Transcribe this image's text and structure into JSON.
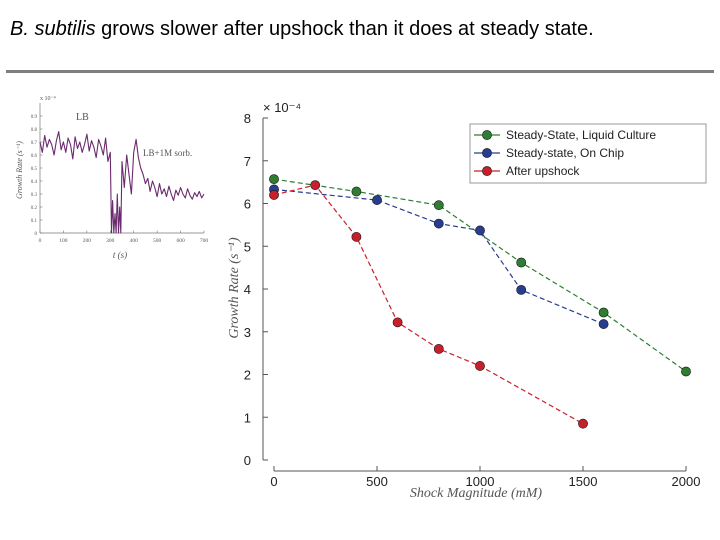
{
  "slide": {
    "title_italic": "B. subtilis",
    "title_rest": " grows slower after upshock than it does at steady state."
  },
  "colors": {
    "green": "#2e7d32",
    "blue": "#283d8f",
    "red": "#c8202a",
    "inset_line": "#6a2a6e",
    "rule": "#7f7f7f"
  },
  "chart_data": [
    {
      "type": "line",
      "title": "",
      "xlabel": "Shock Magnitude (mM)",
      "ylabel": "Growth Rate (s⁻¹)",
      "y_multiplier": "× 10⁻⁴",
      "xlim": [
        0,
        2000
      ],
      "ylim": [
        0,
        8
      ],
      "xticks": [
        0,
        500,
        1000,
        1500,
        2000
      ],
      "yticks": [
        0,
        1,
        2,
        3,
        4,
        5,
        6,
        7,
        8
      ],
      "grid": false,
      "legend_position": "top-right",
      "series": [
        {
          "name": "Steady-State, Liquid Culture",
          "color": "#2e7d32",
          "x": [
            0,
            400,
            800,
            1200,
            1600,
            2000
          ],
          "y": [
            6.57,
            6.28,
            5.96,
            4.62,
            3.45,
            2.07
          ]
        },
        {
          "name": "Steady-state, On Chip",
          "color": "#283d8f",
          "x": [
            0,
            500,
            800,
            1000,
            1200,
            1600
          ],
          "y": [
            6.33,
            6.08,
            5.53,
            5.37,
            3.98,
            3.18
          ]
        },
        {
          "name": "After upshock",
          "color": "#c8202a",
          "x": [
            0,
            200,
            400,
            600,
            800,
            1000,
            1500
          ],
          "y": [
            6.2,
            6.43,
            5.22,
            3.22,
            2.6,
            2.2,
            0.85
          ]
        }
      ]
    },
    {
      "type": "line",
      "title": "",
      "xlabel": "t (s)",
      "ylabel": "Growth Rate (s⁻¹)",
      "y_multiplier": "x 10⁻⁴",
      "xlim": [
        0,
        700
      ],
      "ylim": [
        0,
        1
      ],
      "xticks": [
        0,
        100,
        200,
        300,
        400,
        500,
        600,
        700
      ],
      "yticks": [
        "0",
        "0.1",
        "0.2",
        "0.3",
        "0.4",
        "0.5",
        "0.6",
        "0.7",
        "0.8",
        "0.9"
      ],
      "grid": false,
      "annotations": [
        "LB",
        "LB+1M sorb."
      ],
      "series": [
        {
          "color": "#6a2a6e",
          "x": [
            0,
            10,
            20,
            30,
            40,
            50,
            60,
            70,
            80,
            90,
            100,
            110,
            120,
            130,
            140,
            150,
            160,
            170,
            180,
            190,
            200,
            210,
            220,
            230,
            240,
            250,
            260,
            270,
            280,
            290,
            300,
            305,
            310,
            315,
            320,
            325,
            330,
            335,
            340,
            345,
            350,
            360,
            370,
            380,
            390,
            400,
            410,
            420,
            430,
            440,
            450,
            460,
            470,
            480,
            490,
            500,
            510,
            520,
            530,
            540,
            550,
            560,
            570,
            580,
            590,
            600,
            610,
            620,
            630,
            640,
            650,
            660,
            670,
            680,
            690,
            700
          ],
          "y": [
            0.7,
            0.62,
            0.75,
            0.66,
            0.72,
            0.68,
            0.6,
            0.71,
            0.78,
            0.64,
            0.7,
            0.62,
            0.73,
            0.68,
            0.57,
            0.74,
            0.65,
            0.7,
            0.62,
            0.68,
            0.76,
            0.63,
            0.71,
            0.66,
            0.58,
            0.72,
            0.67,
            0.6,
            0.73,
            0.55,
            0.62,
            0.0,
            0.25,
            0.0,
            0.15,
            0.0,
            0.3,
            0.0,
            0.2,
            0.0,
            0.55,
            0.35,
            0.6,
            0.45,
            0.3,
            0.62,
            0.72,
            0.58,
            0.5,
            0.45,
            0.38,
            0.42,
            0.32,
            0.4,
            0.35,
            0.28,
            0.38,
            0.3,
            0.34,
            0.28,
            0.36,
            0.3,
            0.25,
            0.33,
            0.29,
            0.35,
            0.3,
            0.27,
            0.34,
            0.29,
            0.26,
            0.31,
            0.28,
            0.32,
            0.27,
            0.3
          ]
        }
      ]
    }
  ]
}
